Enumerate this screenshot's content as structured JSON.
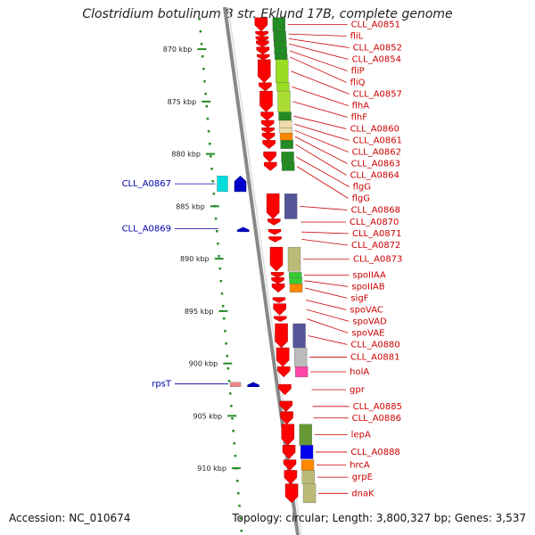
{
  "title": "Clostridium botulinum B str. Eklund 17B, complete genome",
  "footer": {
    "accession": "Accession: NC_010674",
    "info": "Topology: circular; Length: 3,800,327 bp; Genes: 3,537"
  },
  "colors": {
    "reverse_strand": "#ff0000",
    "forward_strand_label": "#0000aa",
    "reverse_strand_label": "#cc0000",
    "backbone": "#888888",
    "ticks": "#228b22"
  },
  "chart_data": {
    "type": "genome-map",
    "kbp_range": [
      866.5,
      913.5
    ],
    "kbp_ticks": [
      {
        "kbp": 870,
        "label": "870 kbp"
      },
      {
        "kbp": 875,
        "label": "875 kbp"
      },
      {
        "kbp": 880,
        "label": "880 kbp"
      },
      {
        "kbp": 885,
        "label": "885 kbp"
      },
      {
        "kbp": 890,
        "label": "890 kbp"
      },
      {
        "kbp": 895,
        "label": "895 kbp"
      },
      {
        "kbp": 900,
        "label": "900 kbp"
      },
      {
        "kbp": 905,
        "label": "905 kbp"
      },
      {
        "kbp": 910,
        "label": "910 kbp"
      }
    ],
    "reverse_genes": [
      {
        "label": "CLL_A0851",
        "start": 867.0,
        "end": 868.3,
        "cog": "#228b22"
      },
      {
        "label": "fliL",
        "start": 868.3,
        "end": 868.8,
        "cog": "#228b22"
      },
      {
        "label": "CLL_A0852",
        "start": 868.8,
        "end": 869.2,
        "cog": "#228b22"
      },
      {
        "label": "CLL_A0854",
        "start": 869.2,
        "end": 869.8,
        "cog": "#228b22"
      },
      {
        "label": "fliP",
        "start": 869.8,
        "end": 870.5,
        "cog": "#228b22"
      },
      {
        "label": "fliQ",
        "start": 870.5,
        "end": 871.0,
        "cog": "#228b22"
      },
      {
        "label": "CLL_A0857",
        "start": 871.0,
        "end": 873.2,
        "cog": "#99dd22"
      },
      {
        "label": "flhA",
        "start": 873.2,
        "end": 874.0,
        "cog": "#99dd22"
      },
      {
        "label": "flhF",
        "start": 874.0,
        "end": 876.0,
        "cog": "#aadd33"
      },
      {
        "label": "CLL_A0860",
        "start": 876.0,
        "end": 876.8,
        "cog": "#228b22"
      },
      {
        "label": "CLL_A0861",
        "start": 876.8,
        "end": 877.5,
        "cog": "#eeddaa"
      },
      {
        "label": "CLL_A0862",
        "start": 877.5,
        "end": 878.0,
        "cog": "#eeddaa"
      },
      {
        "label": "CLL_A0863",
        "start": 878.0,
        "end": 878.7,
        "cog": "#ff8800"
      },
      {
        "label": "CLL_A0864",
        "start": 878.7,
        "end": 879.5,
        "cog": "#228b22"
      },
      {
        "label": "flgG",
        "start": 879.8,
        "end": 880.8,
        "cog": "#228b22"
      },
      {
        "label": "flgG",
        "start": 880.8,
        "end": 881.6,
        "cog": "#228b22"
      },
      {
        "label": "CLL_A0868",
        "start": 883.8,
        "end": 886.2,
        "cog": "#555599"
      },
      {
        "label": "CLL_A0870",
        "start": 886.2,
        "end": 886.8,
        "cog": ""
      },
      {
        "label": "CLL_A0871",
        "start": 887.2,
        "end": 887.7,
        "cog": ""
      },
      {
        "label": "CLL_A0872",
        "start": 887.9,
        "end": 888.4,
        "cog": ""
      },
      {
        "label": "CLL_A0873",
        "start": 888.9,
        "end": 891.2,
        "cog": "#bbbb77"
      },
      {
        "label": "spoIIAA",
        "start": 891.3,
        "end": 891.8,
        "cog": "#33cc33"
      },
      {
        "label": "spoIIAB",
        "start": 891.8,
        "end": 892.4,
        "cog": "#33cc33"
      },
      {
        "label": "sigF",
        "start": 892.4,
        "end": 893.2,
        "cog": "#ff8800"
      },
      {
        "label": "spoVAC",
        "start": 893.7,
        "end": 894.2,
        "cog": ""
      },
      {
        "label": "spoVAD",
        "start": 894.3,
        "end": 895.4,
        "cog": ""
      },
      {
        "label": "spoVAE",
        "start": 895.5,
        "end": 896.0,
        "cog": ""
      },
      {
        "label": "CLL_A0880",
        "start": 896.2,
        "end": 898.5,
        "cog": "#555599"
      },
      {
        "label": "CLL_A0881",
        "start": 898.5,
        "end": 900.3,
        "cog": "#bbbbbb"
      },
      {
        "label": "holA",
        "start": 900.3,
        "end": 901.3,
        "cog": "#ff44aa"
      },
      {
        "label": "gpr",
        "start": 902.0,
        "end": 903.0,
        "cog": ""
      },
      {
        "label": "CLL_A0885",
        "start": 903.6,
        "end": 904.6,
        "cog": ""
      },
      {
        "label": "CLL_A0886",
        "start": 904.6,
        "end": 905.8,
        "cog": ""
      },
      {
        "label": "lepA",
        "start": 905.8,
        "end": 907.8,
        "cog": "#669933"
      },
      {
        "label": "CLL_A0888",
        "start": 907.8,
        "end": 909.1,
        "cog": "#0000ee"
      },
      {
        "label": "hrcA",
        "start": 909.2,
        "end": 910.2,
        "cog": "#ff8800"
      },
      {
        "label": "grpE",
        "start": 910.2,
        "end": 911.5,
        "cog": "#bbbb77"
      },
      {
        "label": "dnaK",
        "start": 911.5,
        "end": 913.3,
        "cog": "#bbbb77"
      }
    ],
    "forward_genes": [
      {
        "label": "CLL_A0867",
        "start": 882.1,
        "end": 883.6,
        "color": "#0000cc",
        "cog": "#00dddd"
      },
      {
        "label": "CLL_A0869",
        "start": 887.0,
        "end": 887.3,
        "color": "#0000cc",
        "cog": ""
      },
      {
        "label": "rpsT",
        "start": 901.8,
        "end": 902.1,
        "color": "#0000cc",
        "cog": "#ee8888"
      }
    ]
  }
}
